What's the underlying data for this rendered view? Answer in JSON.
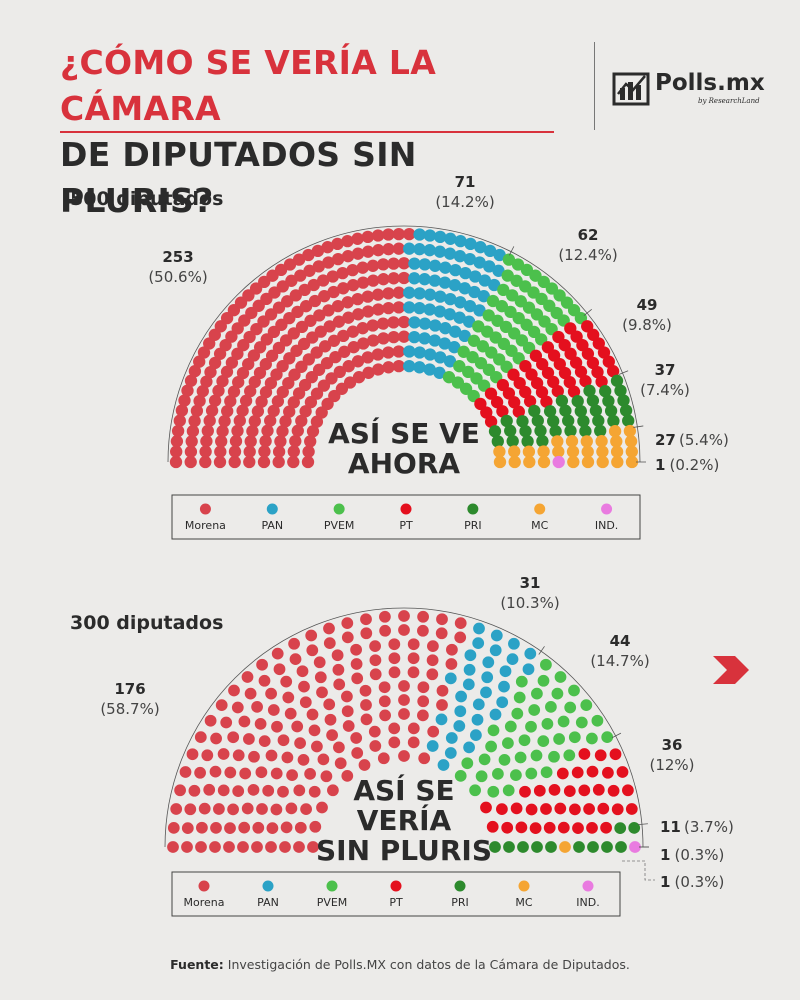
{
  "header": {
    "title_line1": "¿CÓMO SE VERÍA LA CÁMARA",
    "title_line2": "DE DIPUTADOS SIN PLURIS?",
    "logo_text": "Polls.mx",
    "logo_sub": "by ResearchLand"
  },
  "colors": {
    "Morena": "#d8434c",
    "PAN": "#2ba2c6",
    "PVEM": "#4cc04c",
    "PT": "#e4101e",
    "PRI": "#2d8a2d",
    "MC": "#f5a533",
    "IND.": "#e97be0",
    "ink": "#2b2b2b"
  },
  "chart_data": [
    {
      "type": "parliament",
      "total_label": "500 diputados",
      "center_label": [
        "ASÍ SE VE",
        "AHORA"
      ],
      "legend": [
        "Morena",
        "PAN",
        "PVEM",
        "PT",
        "PRI",
        "MC",
        "IND."
      ],
      "parties": [
        {
          "name": "Morena",
          "seats": 253,
          "count_label": "253",
          "pct_label": "(50.6%)"
        },
        {
          "name": "PAN",
          "seats": 71,
          "count_label": "71",
          "pct_label": "(14.2%)"
        },
        {
          "name": "PVEM",
          "seats": 62,
          "count_label": "62",
          "pct_label": "(12.4%)"
        },
        {
          "name": "PT",
          "seats": 49,
          "count_label": "49",
          "pct_label": "(9.8%)"
        },
        {
          "name": "PRI",
          "seats": 37,
          "count_label": "37",
          "pct_label": "(7.4%)"
        },
        {
          "name": "MC",
          "seats": 27,
          "count_label": "27",
          "pct_label": "(5.4%)"
        },
        {
          "name": "IND.",
          "seats": 1,
          "count_label": "1",
          "pct_label": "(0.2%)"
        }
      ]
    },
    {
      "type": "parliament",
      "total_label": "300 diputados",
      "center_label": [
        "ASÍ SE",
        "VERÍA",
        "SIN PLURIS"
      ],
      "legend": [
        "Morena",
        "PAN",
        "PVEM",
        "PT",
        "PRI",
        "MC",
        "IND."
      ],
      "parties": [
        {
          "name": "Morena",
          "seats": 176,
          "count_label": "176",
          "pct_label": "(58.7%)"
        },
        {
          "name": "PAN",
          "seats": 31,
          "count_label": "31",
          "pct_label": "(10.3%)"
        },
        {
          "name": "PVEM",
          "seats": 44,
          "count_label": "44",
          "pct_label": "(14.7%)"
        },
        {
          "name": "PT",
          "seats": 36,
          "count_label": "36",
          "pct_label": "(12%)"
        },
        {
          "name": "PRI",
          "seats": 11,
          "count_label": "11",
          "pct_label": "(3.7%)"
        },
        {
          "name": "IND.",
          "seats": 1,
          "count_label": "1",
          "pct_label": "(0.3%)"
        },
        {
          "name": "MC",
          "seats": 1,
          "count_label": "1",
          "pct_label": "(0.3%)"
        }
      ]
    }
  ],
  "footer": {
    "source_label": "Fuente:",
    "source_text": "Investigación de Polls.MX con datos de la Cámara de Diputados."
  }
}
